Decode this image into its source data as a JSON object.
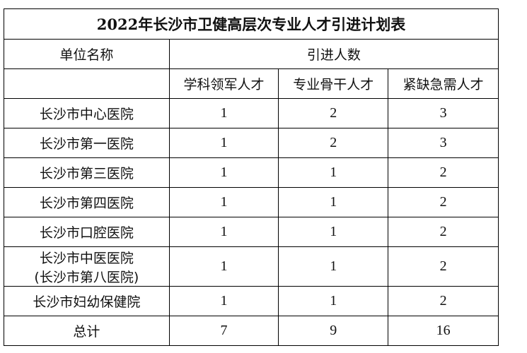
{
  "title": "2022年长沙市卫健高层次专业人才引进计划表",
  "header": {
    "unit": "单位名称",
    "intro": "引进人数",
    "cols": [
      "学科领军人才",
      "专业骨干人才",
      "紧缺急需人才"
    ]
  },
  "rows": [
    {
      "name": "长沙市中心医院",
      "v": [
        "1",
        "2",
        "3"
      ]
    },
    {
      "name": "长沙市第一医院",
      "v": [
        "1",
        "2",
        "3"
      ]
    },
    {
      "name": "长沙市第三医院",
      "v": [
        "1",
        "1",
        "2"
      ]
    },
    {
      "name": "长沙市第四医院",
      "v": [
        "1",
        "1",
        "2"
      ]
    },
    {
      "name": "长沙市口腔医院",
      "v": [
        "1",
        "1",
        "2"
      ]
    },
    {
      "name": "长沙市中医医院",
      "name2": "(长沙市第八医院)",
      "v": [
        "1",
        "1",
        "2"
      ]
    },
    {
      "name": "长沙市妇幼保健院",
      "v": [
        "1",
        "1",
        "2"
      ]
    }
  ],
  "total": {
    "label": "总计",
    "v": [
      "7",
      "9",
      "16"
    ]
  }
}
